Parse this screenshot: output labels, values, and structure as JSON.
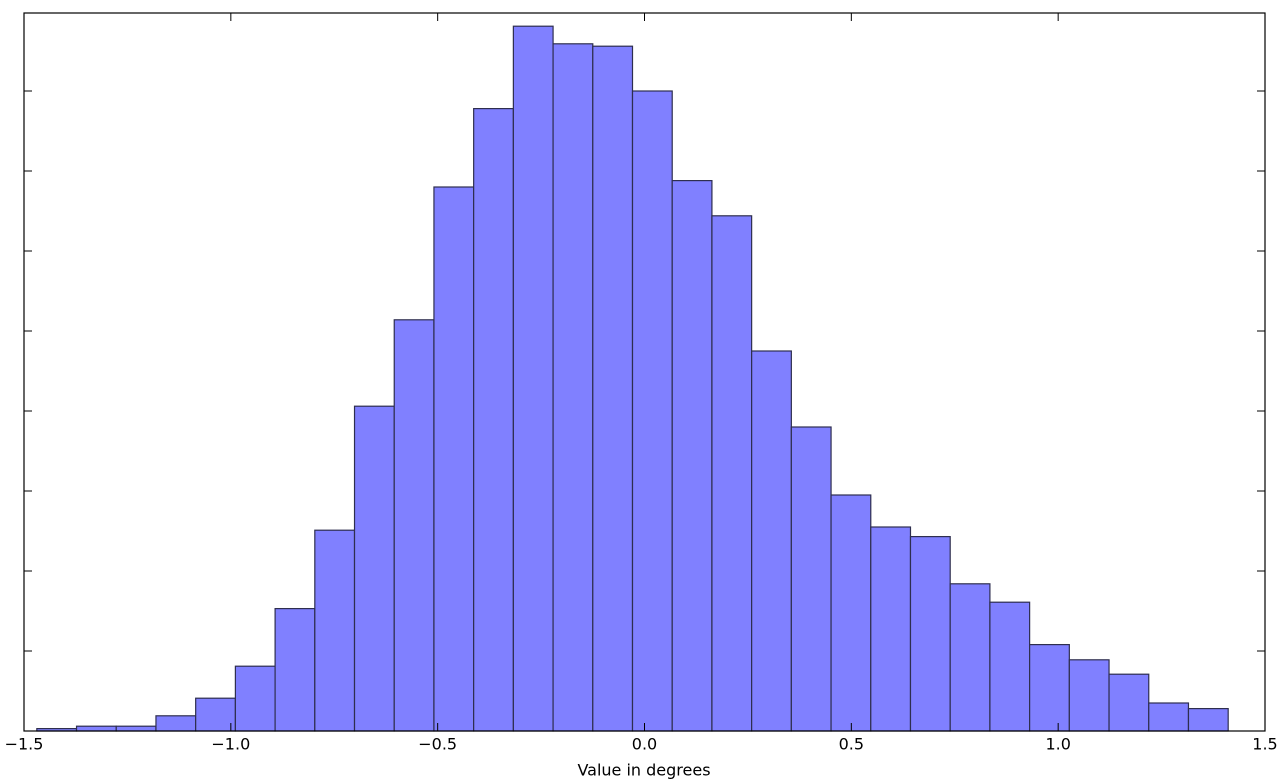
{
  "chart_data": {
    "type": "histogram",
    "x_label": "Value in degrees",
    "bins": [
      -1.469,
      -1.373,
      -1.277,
      -1.181,
      -1.085,
      -0.989,
      -0.893,
      -0.797,
      -0.701,
      -0.605,
      -0.509,
      -0.413,
      -0.317,
      -0.221,
      -0.125,
      -0.029,
      0.067,
      0.163,
      0.259,
      0.355,
      0.451,
      0.547,
      0.643,
      0.739,
      0.835,
      0.931,
      1.027,
      1.123,
      1.219,
      1.315,
      1.411
    ],
    "counts": [
      0.03,
      0.06,
      0.06,
      0.19,
      0.41,
      0.81,
      1.53,
      2.51,
      4.06,
      5.14,
      6.8,
      7.78,
      8.81,
      8.59,
      8.56,
      8.0,
      6.88,
      6.44,
      4.75,
      3.8,
      2.95,
      2.55,
      2.43,
      1.84,
      1.61,
      1.08,
      0.89,
      0.71,
      0.35,
      0.28
    ],
    "color": "#8080ff",
    "edgecolor": "#2e2e4f",
    "xlim": [
      -1.5,
      1.5
    ],
    "xticks": [
      {
        "value": -1.5,
        "label": "−1.5"
      },
      {
        "value": -1.0,
        "label": "−1.0"
      },
      {
        "value": -0.5,
        "label": "−0.5"
      },
      {
        "value": 0,
        "label": "0.0"
      },
      {
        "value": 0.5,
        "label": "0.5"
      },
      {
        "value": 1.0,
        "label": "1.0"
      },
      {
        "value": 1.5,
        "label": "1.5"
      }
    ],
    "ylim": [
      0,
      8.975
    ],
    "yticks": [
      1,
      2,
      3,
      4,
      5,
      6,
      7,
      8
    ]
  }
}
